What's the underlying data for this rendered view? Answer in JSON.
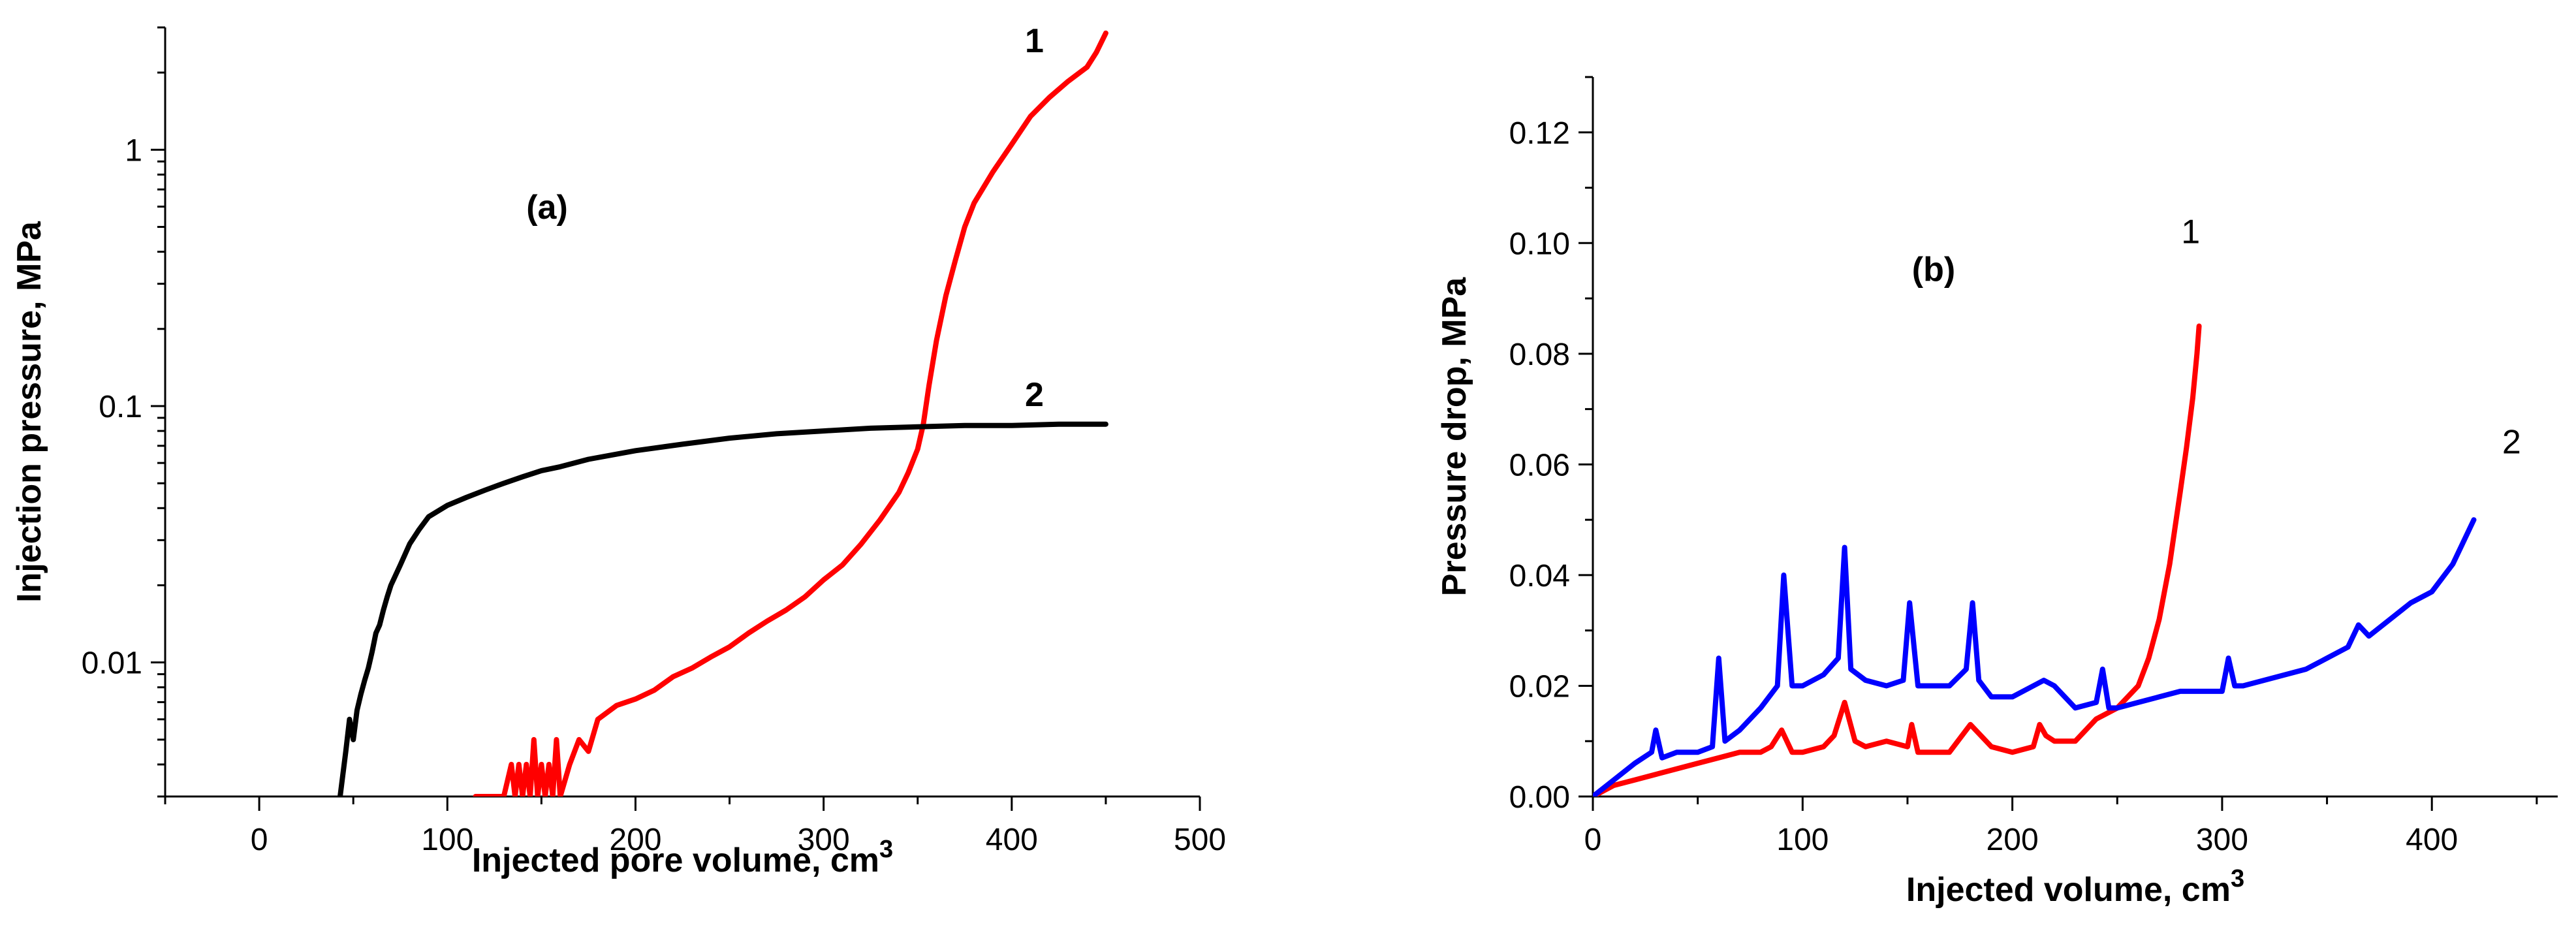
{
  "chart_data": [
    {
      "id": "a",
      "type": "line",
      "panel_label": "(a)",
      "xlabel": "Injected pore volume, cm",
      "xlabel_sup": "3",
      "ylabel": "Injection pressure, MPa",
      "xlim": [
        -50,
        500
      ],
      "ylim": [
        0.003,
        3
      ],
      "yscale": "log",
      "xticks": [
        0,
        100,
        200,
        300,
        400,
        500
      ],
      "xtick_labels": [
        "0",
        "100",
        "200",
        "300",
        "400",
        "500"
      ],
      "yticks": [
        0.01,
        0.1,
        1
      ],
      "ytick_labels": [
        "0.01",
        "0.1",
        "1"
      ],
      "series": [
        {
          "name": "1",
          "color": "#ff0000",
          "label_at": [
            412,
            2.4
          ],
          "x": [
            115,
            130,
            134,
            136,
            138,
            140,
            142,
            144,
            146,
            148,
            150,
            152,
            154,
            156,
            158,
            160,
            165,
            170,
            175,
            180,
            190,
            200,
            210,
            220,
            230,
            240,
            250,
            260,
            270,
            280,
            290,
            300,
            310,
            320,
            330,
            340,
            345,
            350,
            353,
            356,
            360,
            365,
            370,
            375,
            380,
            390,
            400,
            410,
            420,
            430,
            440,
            445,
            450
          ],
          "y": [
            0.003,
            0.003,
            0.004,
            0.003,
            0.004,
            0.003,
            0.004,
            0.003,
            0.005,
            0.003,
            0.004,
            0.003,
            0.004,
            0.003,
            0.005,
            0.003,
            0.004,
            0.005,
            0.0045,
            0.006,
            0.0068,
            0.0072,
            0.0078,
            0.0088,
            0.0095,
            0.0105,
            0.0115,
            0.013,
            0.0145,
            0.016,
            0.018,
            0.021,
            0.024,
            0.029,
            0.036,
            0.046,
            0.055,
            0.068,
            0.085,
            0.12,
            0.18,
            0.27,
            0.37,
            0.5,
            0.62,
            0.82,
            1.05,
            1.35,
            1.6,
            1.85,
            2.1,
            2.4,
            2.85
          ]
        },
        {
          "name": "2",
          "color": "#000000",
          "label_at": [
            412,
            0.1
          ],
          "x": [
            43,
            46,
            48,
            50,
            52,
            54,
            56,
            58,
            60,
            62,
            64,
            66,
            68,
            70,
            75,
            80,
            85,
            90,
            100,
            110,
            120,
            130,
            140,
            150,
            160,
            175,
            200,
            225,
            250,
            275,
            300,
            325,
            350,
            375,
            400,
            425,
            450
          ],
          "y": [
            0.003,
            0.0045,
            0.006,
            0.005,
            0.0065,
            0.0075,
            0.0085,
            0.0095,
            0.011,
            0.013,
            0.014,
            0.016,
            0.018,
            0.02,
            0.024,
            0.029,
            0.033,
            0.037,
            0.041,
            0.044,
            0.047,
            0.05,
            0.053,
            0.056,
            0.058,
            0.062,
            0.067,
            0.071,
            0.075,
            0.078,
            0.08,
            0.082,
            0.083,
            0.084,
            0.084,
            0.085,
            0.085
          ]
        }
      ]
    },
    {
      "id": "b",
      "type": "line",
      "panel_label": "(b)",
      "xlabel": "Injected volume, cm",
      "xlabel_sup": "3",
      "ylabel": "Pressure drop, MPa",
      "xlim": [
        0,
        460
      ],
      "ylim": [
        0,
        0.13
      ],
      "xticks": [
        0,
        100,
        200,
        300,
        400
      ],
      "xtick_labels": [
        "0",
        "100",
        "200",
        "300",
        "400"
      ],
      "yticks": [
        0,
        0.02,
        0.04,
        0.06,
        0.08,
        0.1,
        0.12
      ],
      "ytick_labels": [
        "0.00",
        "0.02",
        "0.04",
        "0.06",
        "0.08",
        "0.10",
        "0.12"
      ],
      "series": [
        {
          "name": "1",
          "color": "#ff0000",
          "label_at": [
            285,
            0.1
          ],
          "x": [
            0,
            10,
            20,
            30,
            40,
            50,
            60,
            70,
            80,
            85,
            90,
            95,
            100,
            110,
            115,
            120,
            125,
            130,
            140,
            150,
            152,
            155,
            160,
            170,
            180,
            185,
            190,
            200,
            210,
            213,
            216,
            220,
            230,
            240,
            250,
            260,
            265,
            270,
            275,
            280,
            283,
            286,
            288,
            289
          ],
          "y": [
            0,
            0.002,
            0.003,
            0.004,
            0.005,
            0.006,
            0.007,
            0.008,
            0.008,
            0.009,
            0.012,
            0.008,
            0.008,
            0.009,
            0.011,
            0.017,
            0.01,
            0.009,
            0.01,
            0.009,
            0.013,
            0.008,
            0.008,
            0.008,
            0.013,
            0.011,
            0.009,
            0.008,
            0.009,
            0.013,
            0.011,
            0.01,
            0.01,
            0.014,
            0.016,
            0.02,
            0.025,
            0.032,
            0.042,
            0.055,
            0.063,
            0.072,
            0.08,
            0.085
          ]
        },
        {
          "name": "2",
          "color": "#0000ff",
          "label_at": [
            438,
            0.062
          ],
          "x": [
            0,
            10,
            20,
            28,
            30,
            33,
            40,
            50,
            57,
            60,
            63,
            70,
            80,
            88,
            91,
            95,
            100,
            110,
            117,
            120,
            123,
            130,
            140,
            148,
            151,
            155,
            160,
            170,
            178,
            181,
            184,
            190,
            200,
            210,
            215,
            220,
            230,
            240,
            243,
            246,
            250,
            260,
            270,
            280,
            290,
            300,
            303,
            306,
            310,
            320,
            330,
            340,
            350,
            360,
            365,
            370,
            380,
            390,
            400,
            410,
            415,
            420
          ],
          "y": [
            0,
            0.003,
            0.006,
            0.008,
            0.012,
            0.007,
            0.008,
            0.008,
            0.009,
            0.025,
            0.01,
            0.012,
            0.016,
            0.02,
            0.04,
            0.02,
            0.02,
            0.022,
            0.025,
            0.045,
            0.023,
            0.021,
            0.02,
            0.021,
            0.035,
            0.02,
            0.02,
            0.02,
            0.023,
            0.035,
            0.021,
            0.018,
            0.018,
            0.02,
            0.021,
            0.02,
            0.016,
            0.017,
            0.023,
            0.016,
            0.016,
            0.017,
            0.018,
            0.019,
            0.019,
            0.019,
            0.025,
            0.02,
            0.02,
            0.021,
            0.022,
            0.023,
            0.025,
            0.027,
            0.031,
            0.029,
            0.032,
            0.035,
            0.037,
            0.042,
            0.046,
            0.05
          ]
        }
      ]
    }
  ]
}
